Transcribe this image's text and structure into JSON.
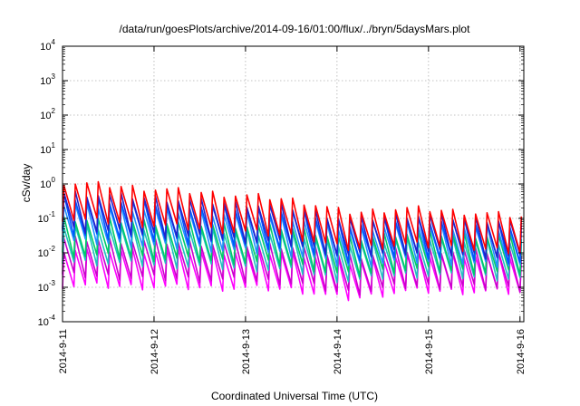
{
  "chart_data": {
    "type": "line",
    "title": "/data/run/goesPlots/archive/2014-09-16/01:00/flux/../bryn/5daysMars.plot",
    "xlabel": "Coordinated Universal Time (UTC)",
    "ylabel": "cSv/day",
    "x_ticks": [
      "2014-9-11",
      "2014-9-12",
      "2014-9-13",
      "2014-9-14",
      "2014-9-15",
      "2014-9-16"
    ],
    "xlim": [
      "2014-9-11",
      "2014-9-16 01:00"
    ],
    "y_scale": "log",
    "ylim": [
      0.0001,
      10000
    ],
    "y_ticks": [
      {
        "base": "10",
        "exp": "-4"
      },
      {
        "base": "10",
        "exp": "-3"
      },
      {
        "base": "10",
        "exp": "-2"
      },
      {
        "base": "10",
        "exp": "-1"
      },
      {
        "base": "10",
        "exp": "0"
      },
      {
        "base": "10",
        "exp": "1"
      },
      {
        "base": "10",
        "exp": "2"
      },
      {
        "base": "10",
        "exp": "3"
      },
      {
        "base": "10",
        "exp": "4"
      }
    ],
    "grid": true,
    "legend": "none",
    "series_colors": [
      "#ff00ff",
      "#cc00cc",
      "#20c0c0",
      "#00cc66",
      "#1e90ff",
      "#0055ff",
      "#2222cc",
      "#ff0000"
    ],
    "series_peak_log10_start": [
      -1.9,
      -1.6,
      -1.2,
      -1.0,
      -0.6,
      -0.4,
      -0.25,
      0.05
    ],
    "series_peak_log10_end": [
      -2.1,
      -2.0,
      -1.7,
      -1.55,
      -1.35,
      -1.2,
      -1.1,
      -0.95
    ],
    "series_drop_decades": 1.05,
    "sawtooth_cycle_hours": 3
  }
}
